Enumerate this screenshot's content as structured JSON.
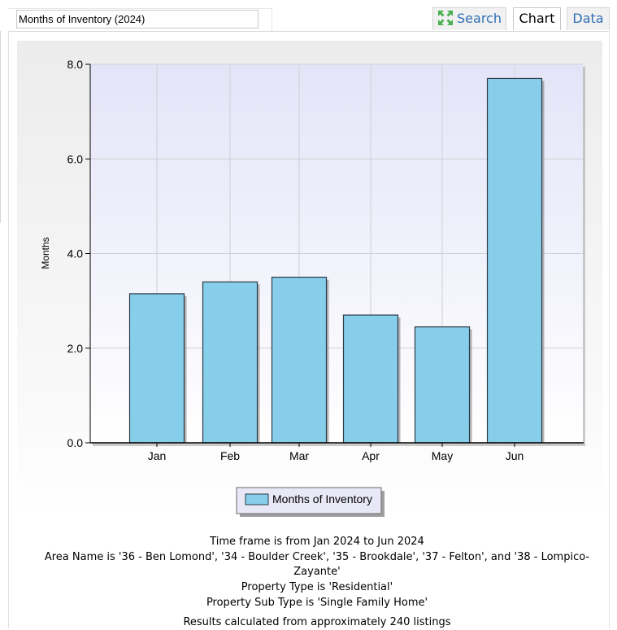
{
  "report_title": "Months of Inventory (2024)",
  "tabs": {
    "search": "Search",
    "chart": "Chart",
    "data": "Data"
  },
  "chart_data": {
    "type": "bar",
    "categories": [
      "Jan",
      "Feb",
      "Mar",
      "Apr",
      "May",
      "Jun"
    ],
    "series": [
      {
        "name": "Months of Inventory",
        "values": [
          3.15,
          3.4,
          3.5,
          2.7,
          2.45,
          7.7
        ]
      }
    ],
    "ylabel": "Months",
    "xlabel": "",
    "ylim": [
      0,
      8
    ],
    "yticks": [
      "0.0",
      "2.0",
      "4.0",
      "6.0",
      "8.0"
    ],
    "grid": true,
    "legend_position": "bottom-center",
    "colors": {
      "bar": "#87ceeb",
      "bar_edge": "#2b3a44",
      "plot_top": "#e4e4f8",
      "plot_bottom": "#ffffff"
    }
  },
  "captions": {
    "timeframe": "Time frame is from Jan 2024 to Jun 2024",
    "area_line1": "Area Name is '36 - Ben Lomond', '34 - Boulder Creek', '35 - Brookdale', '37 - Felton', and '38 - Lompico-",
    "area_line2": "Zayante'",
    "property_type": "Property Type is 'Residential'",
    "property_sub_type": "Property Sub Type is 'Single Family Home'",
    "results": "Results calculated from approximately 240 listings"
  }
}
